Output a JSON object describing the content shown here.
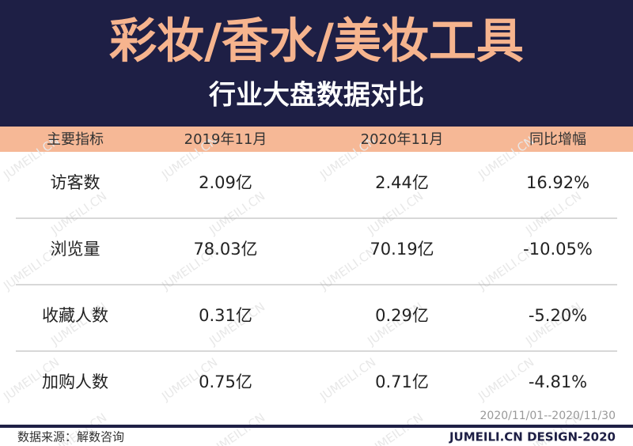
{
  "header": {
    "title": "彩妆/香水/美妆工具",
    "subtitle": "行业大盘数据对比"
  },
  "table": {
    "columns": [
      "主要指标",
      "2019年11月",
      "2020年11月",
      "同比增幅"
    ],
    "rows": [
      [
        "访客数",
        "2.09亿",
        "2.44亿",
        "16.92%"
      ],
      [
        "浏览量",
        "78.03亿",
        "70.19亿",
        "-10.05%"
      ],
      [
        "收藏人数",
        "0.31亿",
        "0.29亿",
        "-5.20%"
      ],
      [
        "加购人数",
        "0.75亿",
        "0.71亿",
        "-4.81%"
      ]
    ]
  },
  "watermark": "JUMEILI.CN",
  "date_range": "2020/11/01--2020/11/30",
  "footer": {
    "source": "数据来源：解数咨询",
    "brand": "JUMEILI.CN DESIGN-2020"
  }
}
